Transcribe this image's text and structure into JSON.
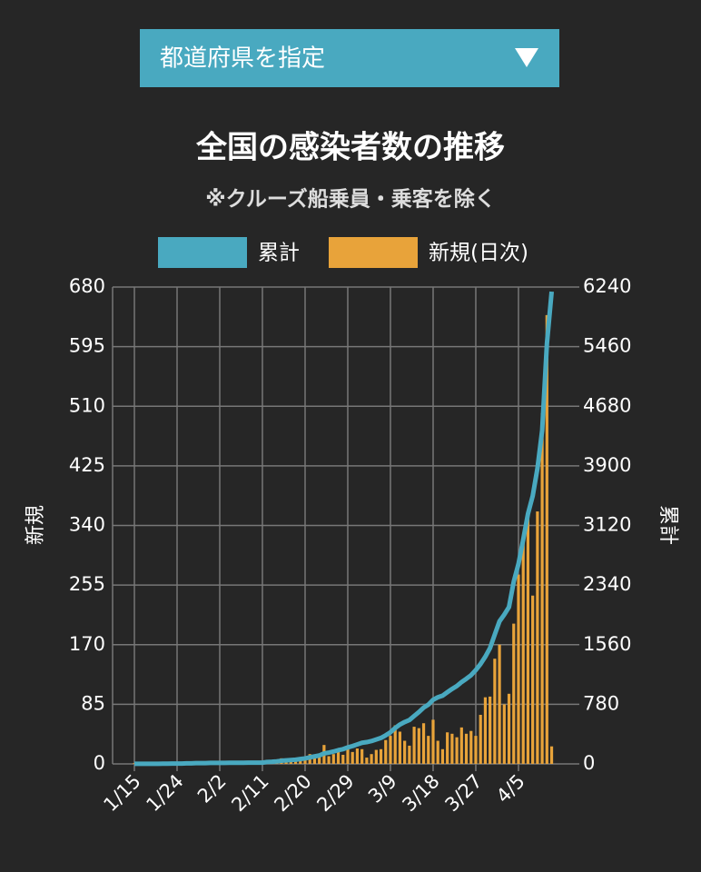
{
  "filter": {
    "label": "都道府県を指定"
  },
  "chart_data": {
    "type": "bar",
    "title": "全国の感染者数の推移",
    "subtitle": "※クルーズ船乗員・乗客を除く",
    "ylabel": "新規",
    "y2label": "累計",
    "categories": [
      "1/15",
      null,
      null,
      null,
      null,
      null,
      null,
      null,
      null,
      "1/24",
      null,
      null,
      null,
      null,
      null,
      null,
      null,
      null,
      "2/2",
      null,
      null,
      null,
      null,
      null,
      null,
      null,
      null,
      "2/11",
      null,
      null,
      null,
      null,
      null,
      null,
      null,
      null,
      "2/20",
      null,
      null,
      null,
      null,
      null,
      null,
      null,
      null,
      "2/29",
      null,
      null,
      null,
      null,
      null,
      null,
      null,
      null,
      "3/9",
      null,
      null,
      null,
      null,
      null,
      null,
      null,
      null,
      "3/18",
      null,
      null,
      null,
      null,
      null,
      null,
      null,
      null,
      "3/27",
      null,
      null,
      null,
      null,
      null,
      null,
      null,
      null,
      "4/5",
      null,
      null,
      null,
      null,
      null,
      null,
      null
    ],
    "series": [
      {
        "name": "累計",
        "type": "line",
        "axis": "y2",
        "color": "#49a9c0",
        "values": [
          1,
          1,
          1,
          1,
          1,
          2,
          3,
          3,
          4,
          4,
          5,
          7,
          7,
          10,
          11,
          11,
          13,
          14,
          14,
          14,
          15,
          15,
          15,
          15,
          16,
          16,
          16,
          16,
          26,
          28,
          33,
          41,
          46,
          51,
          55,
          64,
          72,
          86,
          98,
          110,
          137,
          148,
          162,
          180,
          193,
          216,
          233,
          255,
          276,
          285,
          299,
          319,
          340,
          374,
          414,
          469,
          515,
          548,
          574,
          627,
          678,
          736,
          776,
          839,
          872,
          893,
          938,
          981,
          1019,
          1071,
          1114,
          1161,
          1228,
          1307,
          1402,
          1516,
          1693,
          1866,
          1953,
          2053,
          2384,
          2617,
          2935,
          3271,
          3506,
          3866,
          4366,
          5500,
          6180
        ]
      },
      {
        "name": "新規(日次)",
        "type": "bar",
        "color": "#e8a33a",
        "values": [
          1,
          0,
          0,
          0,
          0,
          1,
          1,
          0,
          1,
          0,
          1,
          2,
          0,
          3,
          1,
          0,
          2,
          1,
          0,
          0,
          1,
          0,
          0,
          0,
          0,
          0,
          0,
          0,
          3,
          1,
          2,
          8,
          5,
          5,
          4,
          9,
          8,
          14,
          12,
          12,
          27,
          11,
          14,
          18,
          13,
          23,
          17,
          22,
          21,
          9,
          14,
          20,
          21,
          34,
          40,
          55,
          46,
          33,
          26,
          53,
          51,
          58,
          40,
          63,
          33,
          21,
          45,
          43,
          38,
          52,
          43,
          47,
          40,
          70,
          95,
          96,
          150,
          170,
          85,
          100,
          200,
          270,
          320,
          360,
          240,
          360,
          500,
          640,
          25
        ]
      }
    ],
    "ylim": [
      0,
      680
    ],
    "yticks": [
      0,
      85,
      170,
      255,
      340,
      425,
      510,
      595,
      680
    ],
    "y2lim": [
      0,
      6240
    ],
    "y2ticks": [
      0,
      780,
      1560,
      2340,
      3120,
      3900,
      4680,
      5460,
      6240
    ],
    "grid": true
  }
}
